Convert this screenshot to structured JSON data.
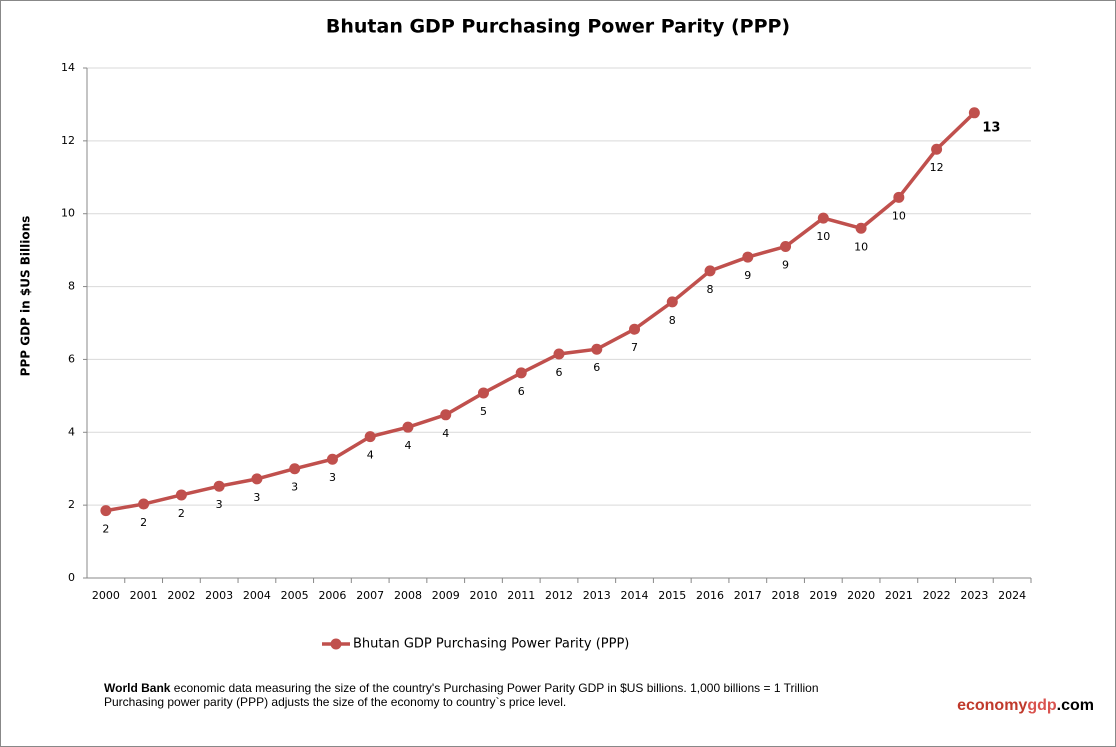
{
  "chart_data": {
    "type": "line",
    "title": "Bhutan GDP Purchasing Power Parity (PPP)",
    "y_label": "PPP GDP in $US Billions",
    "categories": [
      "2000",
      "2001",
      "2002",
      "2003",
      "2004",
      "2005",
      "2006",
      "2007",
      "2008",
      "2009",
      "2010",
      "2011",
      "2012",
      "2013",
      "2014",
      "2015",
      "2016",
      "2017",
      "2018",
      "2019",
      "2020",
      "2021",
      "2022",
      "2023",
      "2024"
    ],
    "series": [
      {
        "name": "Bhutan GDP Purchasing Power Parity (PPP)",
        "color": "#c0504d",
        "values": [
          1.85,
          2.03,
          2.28,
          2.52,
          2.72,
          3.0,
          3.26,
          3.88,
          4.14,
          4.48,
          5.08,
          5.63,
          6.15,
          6.28,
          6.83,
          7.58,
          8.43,
          8.81,
          9.1,
          9.88,
          9.6,
          10.45,
          11.77,
          12.77,
          null
        ],
        "value_labels": [
          "2",
          "2",
          "2",
          "3",
          "3",
          "3",
          "3",
          "4",
          "4",
          "4",
          "5",
          "6",
          "6",
          "6",
          "7",
          "8",
          "8",
          "9",
          "9",
          "10",
          "10",
          "10",
          "12",
          "13",
          null
        ]
      }
    ],
    "ylim": [
      0,
      14
    ],
    "yticks": [
      0,
      2,
      4,
      6,
      8,
      10,
      12,
      14
    ],
    "grid": true,
    "note_source": "World Bank",
    "note_line1": " economic data  measuring the size of the country's Purchasing Power Parity GDP in $US billions. 1,000 billions = 1 Trillion",
    "note_line2": "Purchasing power parity (PPP) adjusts the size of the economy to country`s price level.",
    "brand": [
      "economy",
      "gdp",
      ".com"
    ]
  }
}
